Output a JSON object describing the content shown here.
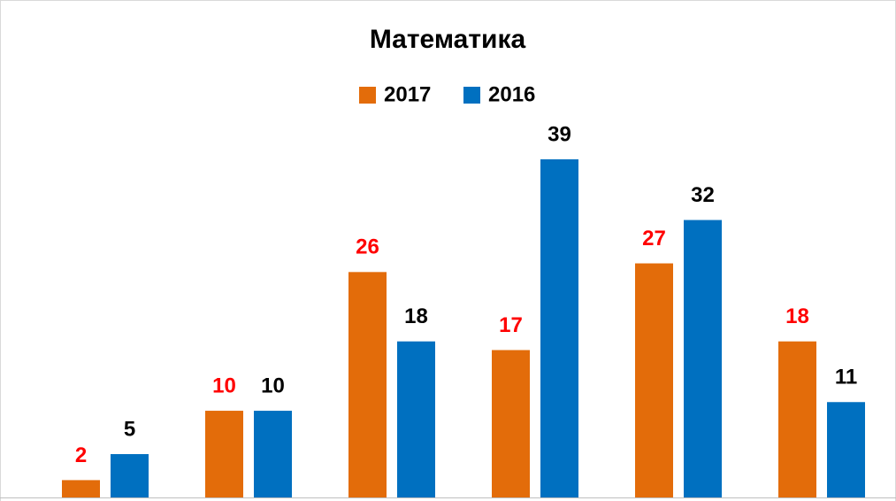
{
  "chart_data": {
    "type": "bar",
    "title": "Математика",
    "categories": [
      null,
      null,
      null,
      null,
      null,
      null
    ],
    "series": [
      {
        "name": "2017",
        "color": "#e36c0a",
        "label_color": "#ff0000",
        "values": [
          2,
          10,
          26,
          17,
          27,
          18
        ]
      },
      {
        "name": "2016",
        "color": "#0070c0",
        "label_color": "#000000",
        "values": [
          5,
          10,
          18,
          39,
          32,
          11
        ]
      }
    ],
    "legend": "top",
    "grid": false
  }
}
